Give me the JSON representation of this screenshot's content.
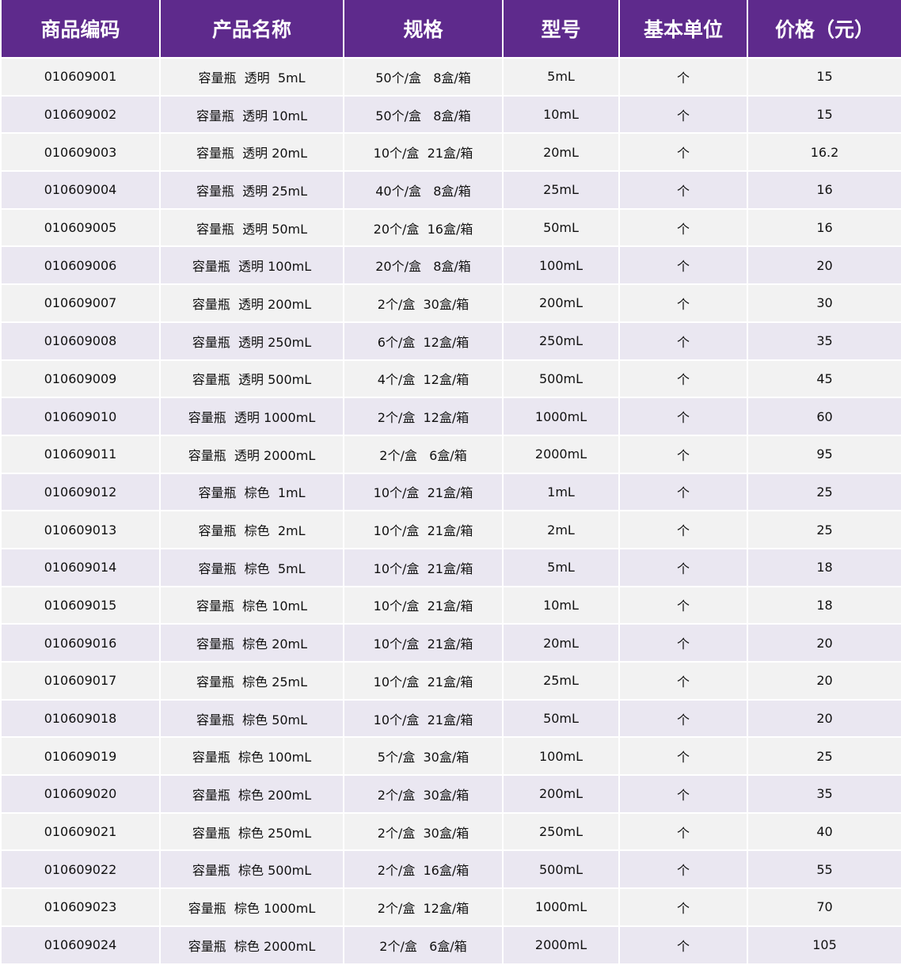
{
  "colors": {
    "header_bg": "#5e2a8c",
    "row_odd": "#f2f2f2",
    "row_even": "#eae7f1"
  },
  "headers": [
    "商品编码",
    "产品名称",
    "规格",
    "型号",
    "基本单位",
    "价格（元）"
  ],
  "rows": [
    [
      "010609001",
      "容量瓶  透明  5mL",
      "50个/盒   8盒/箱",
      "5mL",
      "个",
      "15"
    ],
    [
      "010609002",
      "容量瓶  透明 10mL",
      "50个/盒   8盒/箱",
      "10mL",
      "个",
      "15"
    ],
    [
      "010609003",
      "容量瓶  透明 20mL",
      "10个/盒  21盒/箱",
      "20mL",
      "个",
      "16.2"
    ],
    [
      "010609004",
      "容量瓶  透明 25mL",
      "40个/盒   8盒/箱",
      "25mL",
      "个",
      "16"
    ],
    [
      "010609005",
      "容量瓶  透明 50mL",
      "20个/盒  16盒/箱",
      "50mL",
      "个",
      "16"
    ],
    [
      "010609006",
      "容量瓶  透明 100mL",
      "20个/盒   8盒/箱",
      "100mL",
      "个",
      "20"
    ],
    [
      "010609007",
      "容量瓶  透明 200mL",
      "2个/盒  30盒/箱",
      "200mL",
      "个",
      "30"
    ],
    [
      "010609008",
      "容量瓶  透明 250mL",
      "6个/盒  12盒/箱",
      "250mL",
      "个",
      "35"
    ],
    [
      "010609009",
      "容量瓶  透明 500mL",
      "4个/盒  12盒/箱",
      "500mL",
      "个",
      "45"
    ],
    [
      "010609010",
      "容量瓶  透明 1000mL",
      "2个/盒  12盒/箱",
      "1000mL",
      "个",
      "60"
    ],
    [
      "010609011",
      "容量瓶  透明 2000mL",
      "2个/盒   6盒/箱",
      "2000mL",
      "个",
      "95"
    ],
    [
      "010609012",
      "容量瓶  棕色  1mL",
      "10个/盒  21盒/箱",
      "1mL",
      "个",
      "25"
    ],
    [
      "010609013",
      "容量瓶  棕色  2mL",
      "10个/盒  21盒/箱",
      "2mL",
      "个",
      "25"
    ],
    [
      "010609014",
      "容量瓶  棕色  5mL",
      "10个/盒  21盒/箱",
      "5mL",
      "个",
      "18"
    ],
    [
      "010609015",
      "容量瓶  棕色 10mL",
      "10个/盒  21盒/箱",
      "10mL",
      "个",
      "18"
    ],
    [
      "010609016",
      "容量瓶  棕色 20mL",
      "10个/盒  21盒/箱",
      "20mL",
      "个",
      "20"
    ],
    [
      "010609017",
      "容量瓶  棕色 25mL",
      "10个/盒  21盒/箱",
      "25mL",
      "个",
      "20"
    ],
    [
      "010609018",
      "容量瓶  棕色 50mL",
      "10个/盒  21盒/箱",
      "50mL",
      "个",
      "20"
    ],
    [
      "010609019",
      "容量瓶  棕色 100mL",
      "5个/盒  30盒/箱",
      "100mL",
      "个",
      "25"
    ],
    [
      "010609020",
      "容量瓶  棕色 200mL",
      "2个/盒  30盒/箱",
      "200mL",
      "个",
      "35"
    ],
    [
      "010609021",
      "容量瓶  棕色 250mL",
      "2个/盒  30盒/箱",
      "250mL",
      "个",
      "40"
    ],
    [
      "010609022",
      "容量瓶  棕色 500mL",
      "2个/盒  16盒/箱",
      "500mL",
      "个",
      "55"
    ],
    [
      "010609023",
      "容量瓶  棕色 1000mL",
      "2个/盒  12盒/箱",
      "1000mL",
      "个",
      "70"
    ],
    [
      "010609024",
      "容量瓶  棕色 2000mL",
      "2个/盒   6盒/箱",
      "2000mL",
      "个",
      "105"
    ]
  ]
}
